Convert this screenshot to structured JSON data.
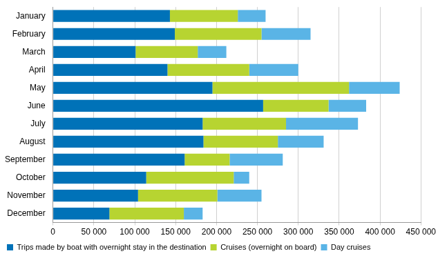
{
  "chart_data": {
    "type": "bar",
    "orientation": "horizontal",
    "stacked": true,
    "grid": true,
    "legend": "bottom",
    "categories": [
      "January",
      "February",
      "March",
      "April",
      "May",
      "June",
      "July",
      "August",
      "September",
      "October",
      "November",
      "December"
    ],
    "series": [
      {
        "name": "Trips made by boat with overnight stay in the destination",
        "color": "#0072b8",
        "values": [
          143000,
          149000,
          101000,
          140000,
          195000,
          257000,
          183000,
          184000,
          161000,
          114000,
          104000,
          69000
        ]
      },
      {
        "name": "Cruises (overnight on board)",
        "color": "#b7d431",
        "values": [
          83000,
          106000,
          76000,
          100000,
          167000,
          80000,
          102000,
          91000,
          55000,
          107000,
          97000,
          91000
        ]
      },
      {
        "name": "Day cruises",
        "color": "#5ab4e6",
        "values": [
          34000,
          60000,
          35000,
          60000,
          62000,
          46000,
          88000,
          56000,
          65000,
          19000,
          54000,
          23000
        ]
      }
    ],
    "xlim": [
      0,
      450000
    ],
    "xticks": [
      0,
      {
        "value": 50000,
        "label": "50 000"
      },
      {
        "value": 100000,
        "label": "100 000"
      },
      {
        "value": 150000,
        "label": "150 000"
      },
      {
        "value": 200000,
        "label": "200 000"
      },
      {
        "value": 250000,
        "label": "250 000"
      },
      {
        "value": 300000,
        "label": "300 000"
      },
      {
        "value": 350000,
        "label": "350 000"
      },
      {
        "value": 400000,
        "label": "400 000"
      },
      {
        "value": 450000,
        "label": "450 000"
      }
    ]
  }
}
